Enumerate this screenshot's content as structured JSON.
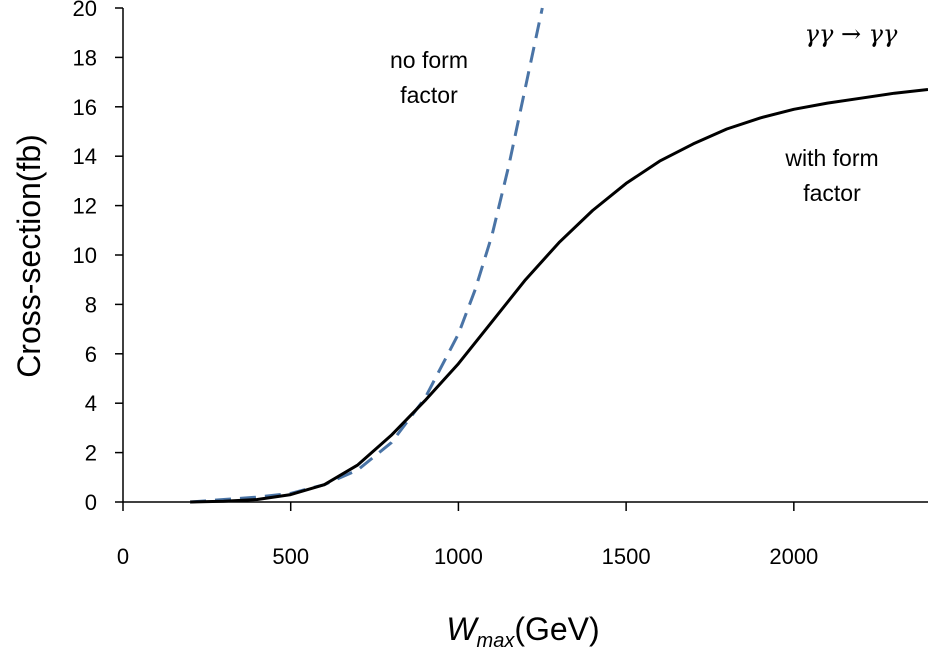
{
  "chart_data": {
    "type": "line",
    "xlabel_main": "W",
    "xlabel_sub": "max",
    "xlabel_unit": "(GeV)",
    "ylabel": "Cross-section(fb)",
    "xlim": [
      0,
      2400
    ],
    "ylim": [
      0,
      20
    ],
    "x_ticks": [
      0,
      500,
      1000,
      1500,
      2000
    ],
    "y_ticks": [
      0,
      2,
      4,
      6,
      8,
      10,
      12,
      14,
      16,
      18,
      20
    ],
    "process_label": "γγ → γγ",
    "annotations": [
      {
        "lines": [
          "no form",
          "factor"
        ],
        "series": "no form factor"
      },
      {
        "lines": [
          "with form",
          "factor"
        ],
        "series": "with form factor"
      }
    ],
    "series": [
      {
        "name": "no form factor",
        "style": "dashed",
        "color": "#4a74a6",
        "points": [
          [
            200,
            0
          ],
          [
            300,
            0.1
          ],
          [
            400,
            0.2
          ],
          [
            500,
            0.35
          ],
          [
            600,
            0.7
          ],
          [
            700,
            1.3
          ],
          [
            800,
            2.4
          ],
          [
            900,
            4.2
          ],
          [
            1000,
            6.8
          ],
          [
            1050,
            8.6
          ],
          [
            1100,
            10.8
          ],
          [
            1150,
            13.6
          ],
          [
            1200,
            16.8
          ],
          [
            1250,
            20.0
          ]
        ]
      },
      {
        "name": "with form factor",
        "style": "solid",
        "color": "#000000",
        "points": [
          [
            200,
            0
          ],
          [
            300,
            0.03
          ],
          [
            400,
            0.1
          ],
          [
            500,
            0.3
          ],
          [
            600,
            0.7
          ],
          [
            700,
            1.5
          ],
          [
            800,
            2.7
          ],
          [
            900,
            4.1
          ],
          [
            1000,
            5.6
          ],
          [
            1100,
            7.3
          ],
          [
            1200,
            9.0
          ],
          [
            1300,
            10.5
          ],
          [
            1400,
            11.8
          ],
          [
            1500,
            12.9
          ],
          [
            1600,
            13.8
          ],
          [
            1700,
            14.5
          ],
          [
            1800,
            15.1
          ],
          [
            1900,
            15.55
          ],
          [
            2000,
            15.9
          ],
          [
            2100,
            16.15
          ],
          [
            2200,
            16.35
          ],
          [
            2300,
            16.55
          ],
          [
            2400,
            16.7
          ]
        ]
      }
    ]
  }
}
